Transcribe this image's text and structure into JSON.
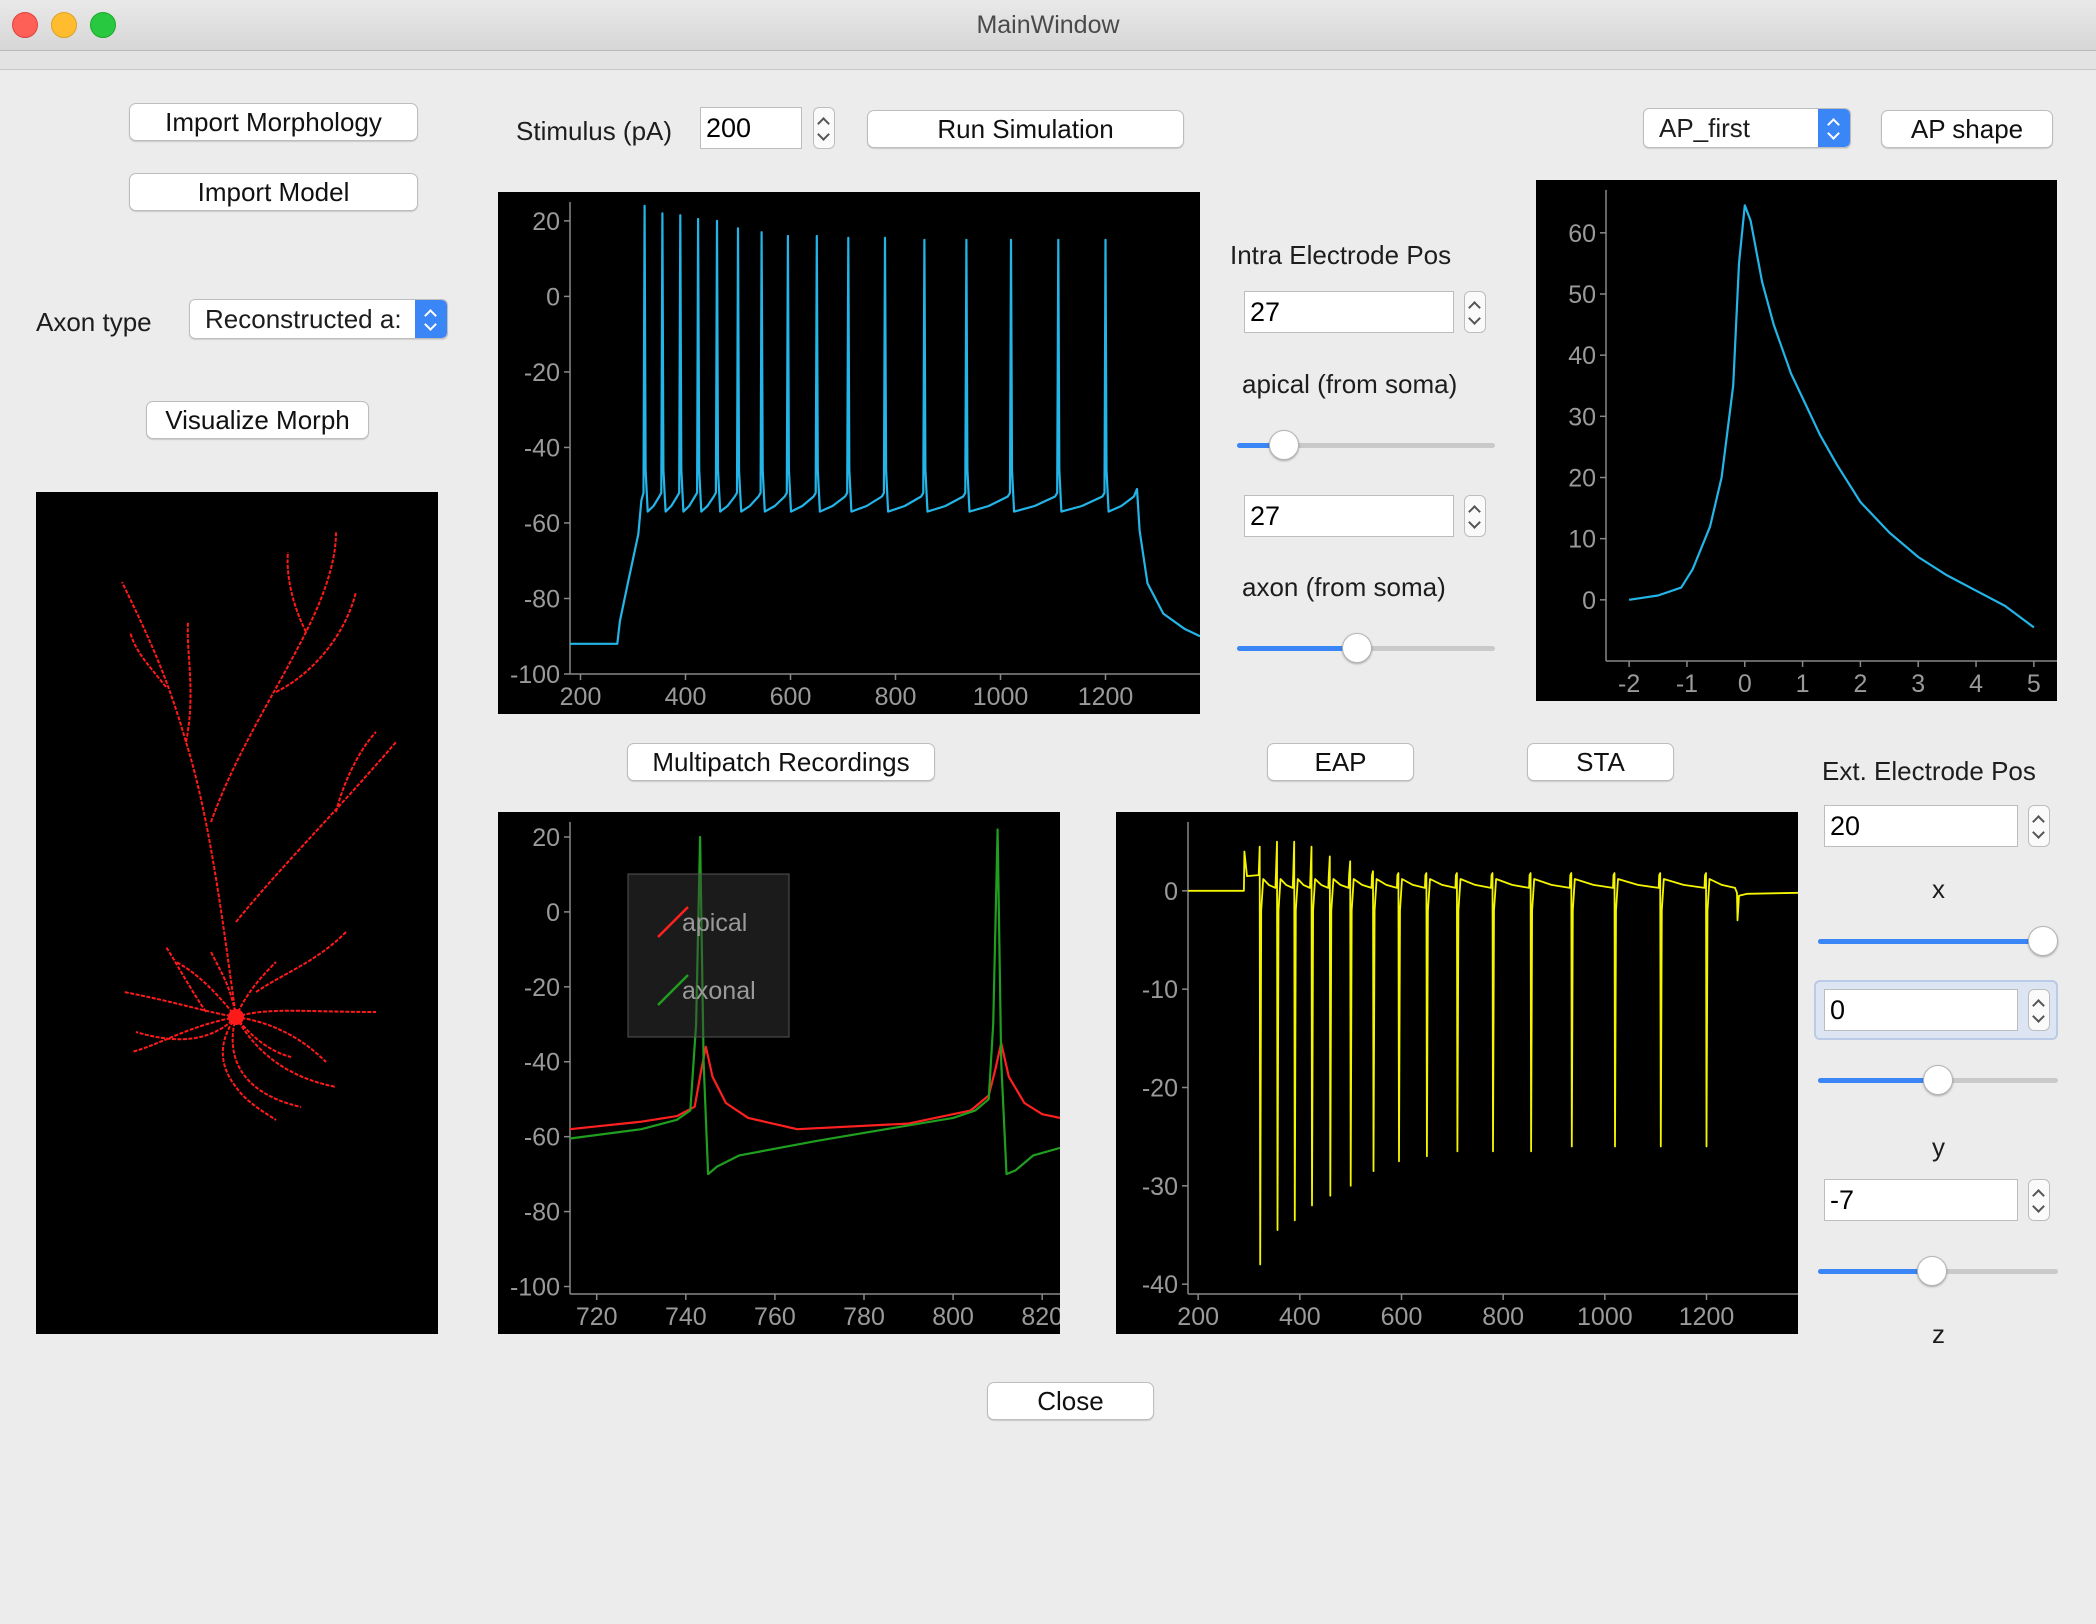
{
  "window": {
    "title": "MainWindow"
  },
  "left": {
    "import_morphology": "Import Morphology",
    "import_model": "Import Model",
    "axon_type_label": "Axon type",
    "axon_type_value": "Reconstructed a:",
    "visualize_morph": "Visualize Morph"
  },
  "toolbar": {
    "stimulus_label": "Stimulus (pA)",
    "stimulus_value": "200",
    "run_simulation": "Run Simulation",
    "ap_select_value": "AP_first",
    "ap_shape": "AP shape"
  },
  "intra": {
    "title": "Intra Electrode Pos",
    "apical_value": "27",
    "apical_label": "apical (from soma)",
    "apical_slider": 0.14,
    "axon_value": "27",
    "axon_label": "axon (from soma)",
    "axon_slider": 0.46
  },
  "buttons": {
    "multipatch": "Multipatch Recordings",
    "eap": "EAP",
    "sta": "STA",
    "close": "Close"
  },
  "ext": {
    "title": "Ext. Electrode Pos",
    "x_value": "20",
    "x_label": "x",
    "x_slider": 1.0,
    "y_value": "0",
    "y_label": "y",
    "y_slider": 0.5,
    "z_value": "-7",
    "z_label": "z",
    "z_slider": 0.47
  },
  "chart_data": [
    {
      "id": "membrane",
      "type": "line",
      "color": "#23b5e8",
      "xlim": [
        180,
        1380
      ],
      "ylim": [
        -100,
        25
      ],
      "xticks": [
        200,
        400,
        600,
        800,
        1000,
        1200
      ],
      "yticks": [
        20,
        0,
        -20,
        -40,
        -60,
        -80,
        -100
      ],
      "stim_on": 290,
      "stim_off": 1260,
      "spike_times": [
        322,
        356,
        390,
        424,
        460,
        500,
        545,
        595,
        650,
        710,
        780,
        855,
        935,
        1020,
        1110,
        1200
      ],
      "spike_peaks": [
        24,
        22,
        21.5,
        20.5,
        20,
        18,
        17,
        16,
        16,
        15.5,
        15.5,
        15,
        15,
        15,
        15,
        15
      ]
    },
    {
      "id": "ap_shape",
      "type": "line",
      "color": "#23b5e8",
      "xlim": [
        -2.4,
        5.4
      ],
      "ylim": [
        -10,
        67
      ],
      "xticks": [
        -2,
        -1,
        0,
        1,
        2,
        3,
        4,
        5
      ],
      "yticks": [
        60,
        50,
        40,
        30,
        20,
        10,
        0
      ],
      "points": [
        [
          -2,
          0
        ],
        [
          -1.5,
          0.7
        ],
        [
          -1.1,
          2
        ],
        [
          -0.9,
          5
        ],
        [
          -0.6,
          12
        ],
        [
          -0.4,
          20
        ],
        [
          -0.2,
          35
        ],
        [
          -0.1,
          55
        ],
        [
          0,
          64.5
        ],
        [
          0.1,
          62
        ],
        [
          0.3,
          52
        ],
        [
          0.5,
          45
        ],
        [
          0.8,
          37
        ],
        [
          1.0,
          33
        ],
        [
          1.3,
          27
        ],
        [
          1.6,
          22
        ],
        [
          2,
          16
        ],
        [
          2.5,
          11
        ],
        [
          3,
          7
        ],
        [
          3.5,
          4
        ],
        [
          4,
          1.5
        ],
        [
          4.5,
          -1
        ],
        [
          5,
          -4.5
        ]
      ]
    },
    {
      "id": "multipatch",
      "type": "line",
      "xlim": [
        714,
        824
      ],
      "ylim": [
        -102,
        24
      ],
      "xticks": [
        720,
        740,
        760,
        780,
        800,
        820
      ],
      "yticks": [
        20,
        0,
        -20,
        -40,
        -60,
        -80,
        -100
      ],
      "legend_placement": "top-left",
      "series": [
        {
          "name": "apical",
          "color": "#ff2020",
          "points": [
            [
              714,
              -58
            ],
            [
              730,
              -56
            ],
            [
              738,
              -54.5
            ],
            [
              742,
              -52
            ],
            [
              743.5,
              -42
            ],
            [
              744.5,
              -36
            ],
            [
              746,
              -44
            ],
            [
              749,
              -51
            ],
            [
              754,
              -55
            ],
            [
              765,
              -58
            ],
            [
              790,
              -56.5
            ],
            [
              804,
              -53
            ],
            [
              808,
              -49
            ],
            [
              809.5,
              -42
            ],
            [
              810.8,
              -35
            ],
            [
              812.5,
              -44
            ],
            [
              816,
              -51
            ],
            [
              820,
              -54
            ],
            [
              824,
              -55
            ]
          ]
        },
        {
          "name": "axonal",
          "color": "#1f9e1f",
          "points": [
            [
              714,
              -60.5
            ],
            [
              730,
              -58
            ],
            [
              738,
              -55.5
            ],
            [
              741,
              -53
            ],
            [
              742.3,
              -30
            ],
            [
              743.2,
              20
            ],
            [
              744,
              -40
            ],
            [
              745,
              -70
            ],
            [
              747,
              -68
            ],
            [
              752,
              -65
            ],
            [
              770,
              -61
            ],
            [
              800,
              -55
            ],
            [
              805,
              -53
            ],
            [
              808,
              -50
            ],
            [
              809,
              -30
            ],
            [
              810,
              22
            ],
            [
              810.8,
              -40
            ],
            [
              812,
              -70
            ],
            [
              814,
              -69
            ],
            [
              818,
              -65
            ],
            [
              824,
              -63
            ]
          ]
        }
      ]
    },
    {
      "id": "eap",
      "type": "line",
      "color": "#f5f500",
      "xlim": [
        180,
        1380
      ],
      "ylim": [
        -41,
        7
      ],
      "xticks": [
        200,
        400,
        600,
        800,
        1000,
        1200
      ],
      "yticks": [
        0,
        -10,
        -20,
        -30,
        -40
      ],
      "stim_on": 290,
      "stim_off": 1260,
      "spike_times": [
        322,
        356,
        390,
        424,
        460,
        500,
        545,
        595,
        650,
        710,
        780,
        855,
        935,
        1020,
        1110,
        1200
      ],
      "spike_troughs": [
        -38,
        -34.5,
        -33.5,
        -32,
        -31,
        -30,
        -28.5,
        -27.5,
        -27,
        -26.5,
        -26.5,
        -26.5,
        -26,
        -26,
        -26,
        -26
      ],
      "spike_peaks": [
        4.5,
        5,
        5,
        4.5,
        3.5,
        3,
        2,
        1.8,
        1.8,
        1.8,
        1.8,
        1.8,
        1.8,
        1.8,
        1.8,
        1.8
      ]
    }
  ]
}
